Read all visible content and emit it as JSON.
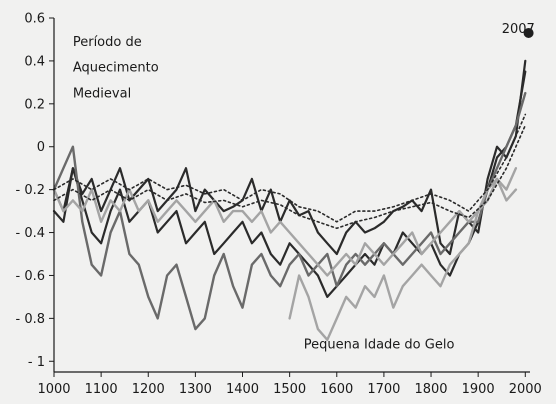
{
  "chart_data": {
    "type": "line",
    "title": "",
    "xlabel": "",
    "ylabel": "",
    "xlim": [
      1000,
      2010
    ],
    "ylim": [
      -1.05,
      0.6
    ],
    "x_ticks": [
      1000,
      1100,
      1200,
      1300,
      1400,
      1500,
      1600,
      1700,
      1800,
      1900,
      2000
    ],
    "y_ticks": [
      0.6,
      0.4,
      0.2,
      0,
      -0.2,
      -0.4,
      -0.6,
      -0.8,
      -1
    ],
    "y_tick_labels": [
      "0.6",
      "0.4",
      "0.2",
      "0",
      "- 0.2",
      "- 0.4",
      "- 0.6",
      "- 0.8",
      "- 1"
    ],
    "grid": false,
    "legend": "none",
    "annotations": [
      {
        "text": "Período de",
        "x": 1040,
        "y": 0.47
      },
      {
        "text": "Aquecimento",
        "x": 1040,
        "y": 0.35
      },
      {
        "text": "Medieval",
        "x": 1040,
        "y": 0.23
      },
      {
        "text": "Pequena Idade do Gelo",
        "x": 1530,
        "y": -0.94
      },
      {
        "text": "2007",
        "x": 1950,
        "y": 0.53
      }
    ],
    "highlight_point": {
      "x": 2007,
      "y": 0.53
    },
    "series": [
      {
        "style": "dark",
        "x": [
          1000,
          1020,
          1040,
          1060,
          1080,
          1100,
          1120,
          1140,
          1160,
          1180,
          1200,
          1220,
          1240,
          1260,
          1280,
          1300,
          1320,
          1340,
          1360,
          1380,
          1400,
          1420,
          1440,
          1460,
          1480,
          1500,
          1520,
          1540,
          1560,
          1580,
          1600,
          1620,
          1640,
          1660,
          1680,
          1700,
          1720,
          1740,
          1760,
          1780,
          1800,
          1820,
          1840,
          1860,
          1880,
          1900,
          1920,
          1940,
          1960,
          1980,
          2000
        ],
        "y": [
          -0.2,
          -0.3,
          -0.1,
          -0.22,
          -0.15,
          -0.3,
          -0.2,
          -0.1,
          -0.25,
          -0.2,
          -0.15,
          -0.3,
          -0.25,
          -0.2,
          -0.1,
          -0.3,
          -0.2,
          -0.25,
          -0.3,
          -0.28,
          -0.25,
          -0.15,
          -0.3,
          -0.2,
          -0.35,
          -0.25,
          -0.32,
          -0.3,
          -0.4,
          -0.45,
          -0.5,
          -0.4,
          -0.35,
          -0.4,
          -0.38,
          -0.35,
          -0.3,
          -0.28,
          -0.25,
          -0.3,
          -0.2,
          -0.45,
          -0.5,
          -0.3,
          -0.35,
          -0.4,
          -0.15,
          0.0,
          -0.05,
          0.05,
          0.4
        ]
      },
      {
        "style": "dark",
        "x": [
          1000,
          1020,
          1040,
          1060,
          1080,
          1100,
          1120,
          1140,
          1160,
          1180,
          1200,
          1220,
          1240,
          1260,
          1280,
          1300,
          1320,
          1340,
          1360,
          1380,
          1400,
          1420,
          1440,
          1460,
          1480,
          1500,
          1520,
          1540,
          1560,
          1580,
          1600,
          1620,
          1640,
          1660,
          1680,
          1700,
          1720,
          1740,
          1760,
          1780,
          1800,
          1820,
          1840,
          1860,
          1880,
          1900,
          1920,
          1940,
          1960,
          1980,
          2000
        ],
        "y": [
          -0.3,
          -0.35,
          -0.1,
          -0.25,
          -0.4,
          -0.45,
          -0.3,
          -0.2,
          -0.35,
          -0.3,
          -0.25,
          -0.4,
          -0.35,
          -0.3,
          -0.45,
          -0.4,
          -0.35,
          -0.5,
          -0.45,
          -0.4,
          -0.35,
          -0.45,
          -0.4,
          -0.5,
          -0.55,
          -0.45,
          -0.5,
          -0.55,
          -0.6,
          -0.7,
          -0.65,
          -0.6,
          -0.55,
          -0.5,
          -0.55,
          -0.45,
          -0.5,
          -0.4,
          -0.45,
          -0.5,
          -0.45,
          -0.55,
          -0.6,
          -0.5,
          -0.45,
          -0.35,
          -0.2,
          -0.05,
          0.0,
          0.1,
          0.35
        ]
      },
      {
        "style": "mid",
        "x": [
          1000,
          1020,
          1040,
          1060,
          1080,
          1100,
          1120,
          1140,
          1160,
          1180,
          1200,
          1220,
          1240,
          1260,
          1280,
          1300,
          1320,
          1340,
          1360,
          1380,
          1400,
          1420,
          1440,
          1460,
          1480,
          1500,
          1520,
          1540,
          1560,
          1580,
          1600,
          1620,
          1640,
          1660,
          1680,
          1700,
          1720,
          1740,
          1760,
          1780,
          1800,
          1820,
          1840,
          1860,
          1880,
          1900,
          1920,
          1940,
          1960,
          1980,
          2000
        ],
        "y": [
          -0.2,
          -0.1,
          0.0,
          -0.35,
          -0.55,
          -0.6,
          -0.4,
          -0.3,
          -0.5,
          -0.55,
          -0.7,
          -0.8,
          -0.6,
          -0.55,
          -0.7,
          -0.85,
          -0.8,
          -0.6,
          -0.5,
          -0.65,
          -0.75,
          -0.55,
          -0.5,
          -0.6,
          -0.65,
          -0.55,
          -0.5,
          -0.6,
          -0.55,
          -0.5,
          -0.65,
          -0.55,
          -0.5,
          -0.55,
          -0.5,
          -0.45,
          -0.5,
          -0.55,
          -0.5,
          -0.45,
          -0.4,
          -0.5,
          -0.45,
          -0.4,
          -0.35,
          -0.35,
          -0.2,
          -0.1,
          0.0,
          0.1,
          0.25
        ]
      },
      {
        "style": "light",
        "x": [
          1500,
          1520,
          1540,
          1560,
          1580,
          1600,
          1620,
          1640,
          1660,
          1680,
          1700,
          1720,
          1740,
          1760,
          1780,
          1800,
          1820,
          1840,
          1860,
          1880,
          1900,
          1920,
          1940,
          1960,
          1980
        ],
        "y": [
          -0.8,
          -0.6,
          -0.7,
          -0.85,
          -0.9,
          -0.8,
          -0.7,
          -0.75,
          -0.65,
          -0.7,
          -0.6,
          -0.75,
          -0.65,
          -0.6,
          -0.55,
          -0.6,
          -0.65,
          -0.55,
          -0.5,
          -0.45,
          -0.3,
          -0.2,
          -0.15,
          -0.25,
          -0.2
        ]
      },
      {
        "style": "light",
        "x": [
          1000,
          1020,
          1040,
          1060,
          1080,
          1100,
          1120,
          1140,
          1160,
          1180,
          1200,
          1220,
          1240,
          1260,
          1280,
          1300,
          1320,
          1340,
          1360,
          1380,
          1400,
          1420,
          1440,
          1460,
          1480,
          1500,
          1520,
          1540,
          1560,
          1580,
          1600,
          1620,
          1640,
          1660,
          1680,
          1700,
          1720,
          1740,
          1760,
          1780,
          1800,
          1820,
          1840,
          1860,
          1880,
          1900,
          1920,
          1940,
          1960,
          1980
        ],
        "y": [
          -0.2,
          -0.3,
          -0.25,
          -0.3,
          -0.2,
          -0.35,
          -0.25,
          -0.3,
          -0.2,
          -0.3,
          -0.25,
          -0.35,
          -0.3,
          -0.25,
          -0.3,
          -0.35,
          -0.3,
          -0.25,
          -0.35,
          -0.3,
          -0.3,
          -0.35,
          -0.3,
          -0.4,
          -0.35,
          -0.4,
          -0.45,
          -0.5,
          -0.55,
          -0.6,
          -0.55,
          -0.5,
          -0.55,
          -0.45,
          -0.5,
          -0.55,
          -0.5,
          -0.45,
          -0.4,
          -0.5,
          -0.45,
          -0.4,
          -0.35,
          -0.3,
          -0.35,
          -0.3,
          -0.25,
          -0.15,
          -0.2,
          -0.1
        ]
      },
      {
        "style": "dotted",
        "x": [
          1000,
          1040,
          1080,
          1120,
          1160,
          1200,
          1240,
          1280,
          1320,
          1360,
          1400,
          1440,
          1480,
          1520,
          1560,
          1600,
          1640,
          1680,
          1720,
          1760,
          1800,
          1840,
          1880,
          1920,
          1960,
          2000
        ],
        "y": [
          -0.2,
          -0.15,
          -0.2,
          -0.15,
          -0.2,
          -0.15,
          -0.2,
          -0.18,
          -0.22,
          -0.2,
          -0.25,
          -0.2,
          -0.22,
          -0.28,
          -0.3,
          -0.35,
          -0.3,
          -0.3,
          -0.28,
          -0.25,
          -0.22,
          -0.25,
          -0.3,
          -0.2,
          -0.05,
          0.15
        ]
      },
      {
        "style": "dotted",
        "x": [
          1000,
          1040,
          1080,
          1120,
          1160,
          1200,
          1240,
          1280,
          1320,
          1360,
          1400,
          1440,
          1480,
          1520,
          1560,
          1600,
          1640,
          1680,
          1720,
          1760,
          1800,
          1840,
          1880,
          1920,
          1960,
          2000
        ],
        "y": [
          -0.25,
          -0.2,
          -0.25,
          -0.2,
          -0.25,
          -0.2,
          -0.25,
          -0.22,
          -0.26,
          -0.25,
          -0.28,
          -0.25,
          -0.27,
          -0.32,
          -0.35,
          -0.38,
          -0.35,
          -0.33,
          -0.3,
          -0.28,
          -0.26,
          -0.3,
          -0.33,
          -0.25,
          -0.1,
          0.1
        ]
      }
    ]
  }
}
